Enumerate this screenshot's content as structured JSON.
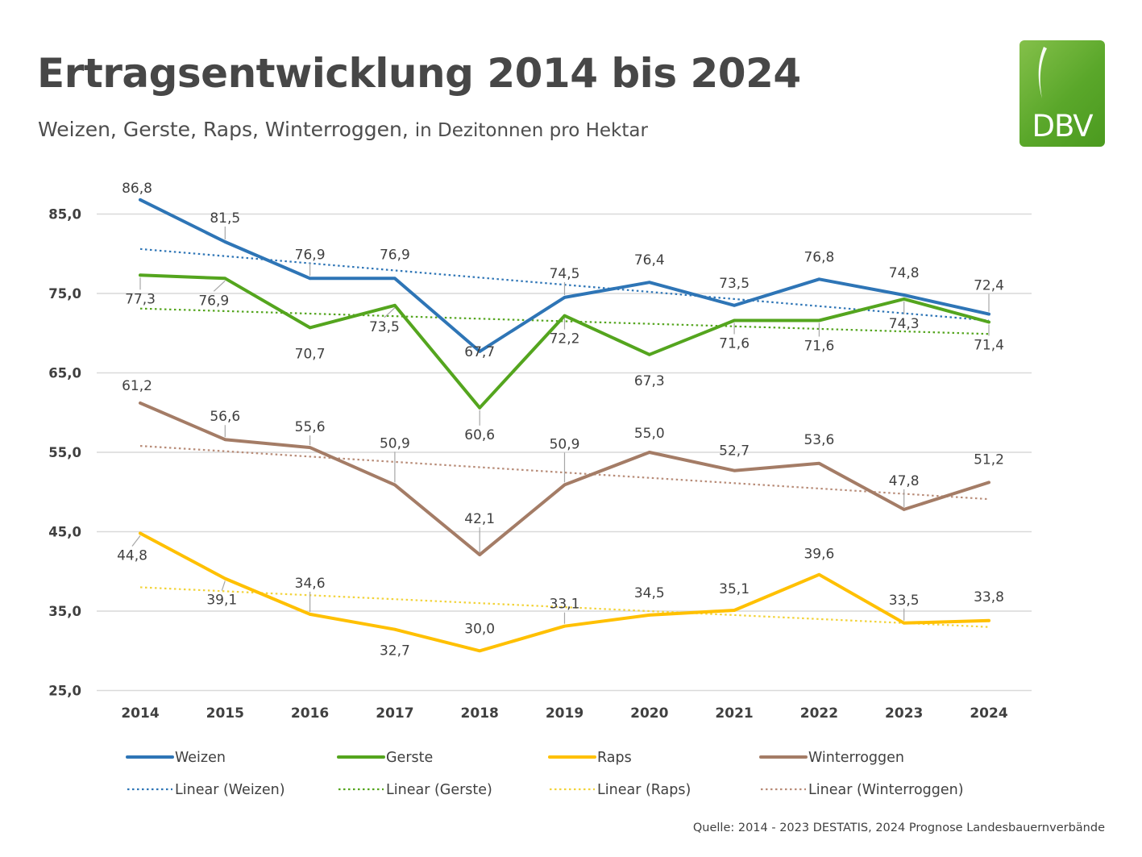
{
  "header": {
    "title": "Ertragsentwicklung 2014 bis 2024",
    "subtitle_crops": "Weizen, Gerste, Raps, Winterroggen,",
    "subtitle_unit": "in Dezitonnen pro Hektar"
  },
  "logo": {
    "text": "DBV",
    "colors": {
      "green": "#5aa72a"
    }
  },
  "source": "Quelle: 2014 - 2023 DESTATIS, 2024 Prognose Landesbauernverbände",
  "chart_data": {
    "type": "line",
    "categories": [
      "2014",
      "2015",
      "2016",
      "2017",
      "2018",
      "2019",
      "2020",
      "2021",
      "2022",
      "2023",
      "2024"
    ],
    "ylim": [
      25,
      85
    ],
    "yticks": [
      "85,0",
      "75,0",
      "65,0",
      "55,0",
      "45,0",
      "35,0",
      "25,0"
    ],
    "grid": true,
    "legend_position": "bottom",
    "series": [
      {
        "name": "Weizen",
        "color": "#2e75b6",
        "values": [
          86.8,
          81.5,
          76.9,
          76.9,
          67.7,
          74.5,
          76.4,
          73.5,
          76.8,
          74.8,
          72.4
        ],
        "labels": [
          "86,8",
          "81,5",
          "76,9",
          "76,9",
          "67,7",
          "74,5",
          "76,4",
          "73,5",
          "76,8",
          "74,8",
          "72,4"
        ]
      },
      {
        "name": "Gerste",
        "color": "#54a51e",
        "values": [
          77.3,
          76.9,
          70.7,
          73.5,
          60.6,
          72.2,
          67.3,
          71.6,
          71.6,
          74.3,
          71.4
        ],
        "labels": [
          "77,3",
          "76,9",
          "70,7",
          "73,5",
          "60,6",
          "72,2",
          "67,3",
          "71,6",
          "71,6",
          "74,3",
          "71,4"
        ]
      },
      {
        "name": "Raps",
        "color": "#ffc000",
        "values": [
          44.8,
          39.1,
          34.6,
          32.7,
          30.0,
          33.1,
          34.5,
          35.1,
          39.6,
          33.5,
          33.8
        ],
        "labels": [
          "44,8",
          "39,1",
          "34,6",
          "32,7",
          "30,0",
          "33,1",
          "34,5",
          "35,1",
          "39,6",
          "33,5",
          "33,8"
        ]
      },
      {
        "name": "Winterroggen",
        "color": "#a47c66",
        "values": [
          61.2,
          56.6,
          55.6,
          50.9,
          42.1,
          50.9,
          55.0,
          52.7,
          53.6,
          47.8,
          51.2
        ],
        "labels": [
          "61,2",
          "56,6",
          "55,6",
          "50,9",
          "42,1",
          "50,9",
          "55,0",
          "52,7",
          "53,6",
          "47,8",
          "51,2"
        ]
      }
    ],
    "trendlines": [
      {
        "name": "Linear (Weizen)",
        "color": "#2e75b6",
        "start": 80.6,
        "end": 71.6
      },
      {
        "name": "Linear (Gerste)",
        "color": "#54a51e",
        "start": 73.1,
        "end": 69.9
      },
      {
        "name": "Linear (Raps)",
        "color": "#f2d33a",
        "start": 38.0,
        "end": 33.0
      },
      {
        "name": "Linear (Winterroggen)",
        "color": "#b88c78",
        "start": 55.8,
        "end": 49.1
      }
    ]
  }
}
